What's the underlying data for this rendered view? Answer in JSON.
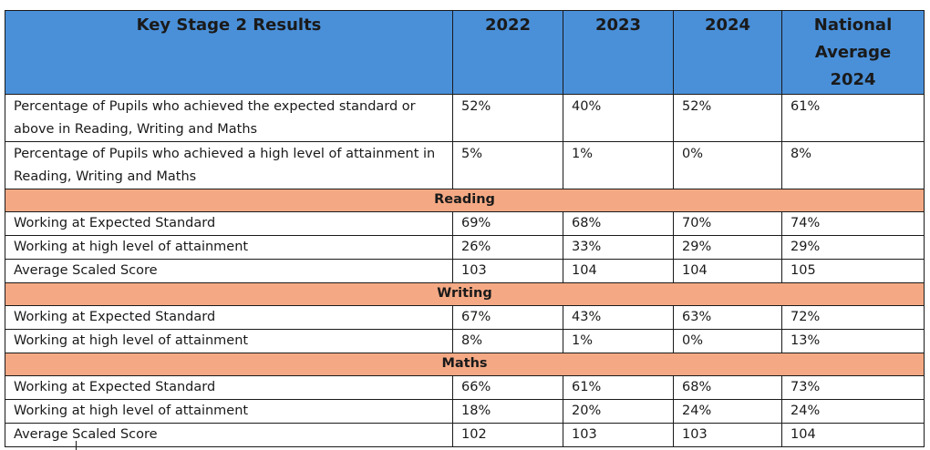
{
  "header": {
    "title": "Key Stage 2 Results",
    "col_2022": "2022",
    "col_2023": "2023",
    "col_2024": "2024",
    "col_national": "National Average 2024"
  },
  "overall": [
    {
      "label": "Percentage of Pupils who achieved the expected standard or above in Reading, Writing and Maths",
      "v2022": "52%",
      "v2023": "40%",
      "v2024": "52%",
      "national": "61%"
    },
    {
      "label": "Percentage of Pupils who achieved a high level of attainment in Reading, Writing and Maths",
      "v2022": "5%",
      "v2023": "1%",
      "v2024": "0%",
      "national": "8%"
    }
  ],
  "reading": {
    "heading": "Reading",
    "rows": [
      {
        "label": "Working at Expected Standard",
        "v2022": "69%",
        "v2023": "68%",
        "v2024": "70%",
        "national": "74%"
      },
      {
        "label": "Working at high level of attainment",
        "v2022": "26%",
        "v2023": "33%",
        "v2024": "29%",
        "national": "29%"
      },
      {
        "label": "Average Scaled Score",
        "v2022": "103",
        "v2023": "104",
        "v2024": "104",
        "national": "105"
      }
    ]
  },
  "writing": {
    "heading": "Writing",
    "rows": [
      {
        "label": "Working at Expected Standard",
        "v2022": "67%",
        "v2023": "43%",
        "v2024": "63%",
        "national": "72%"
      },
      {
        "label": "Working at high level of attainment",
        "v2022": "8%",
        "v2023": "1%",
        "v2024": "0%",
        "national": "13%"
      }
    ]
  },
  "maths": {
    "heading": "Maths",
    "rows": [
      {
        "label": "Working at Expected Standard",
        "v2022": "66%",
        "v2023": "61%",
        "v2024": "68%",
        "national": "73%"
      },
      {
        "label": "Working at high level of attainment",
        "v2022": "18%",
        "v2023": "20%",
        "v2024": "24%",
        "national": "24%"
      },
      {
        "label": "Average Scaled Score",
        "v2022": "102",
        "v2023": "103",
        "v2024": "103",
        "national": "104"
      }
    ]
  },
  "colors": {
    "header_bg": "#4a90d9",
    "section_bg": "#f4a984",
    "border": "#1a1a1a"
  }
}
